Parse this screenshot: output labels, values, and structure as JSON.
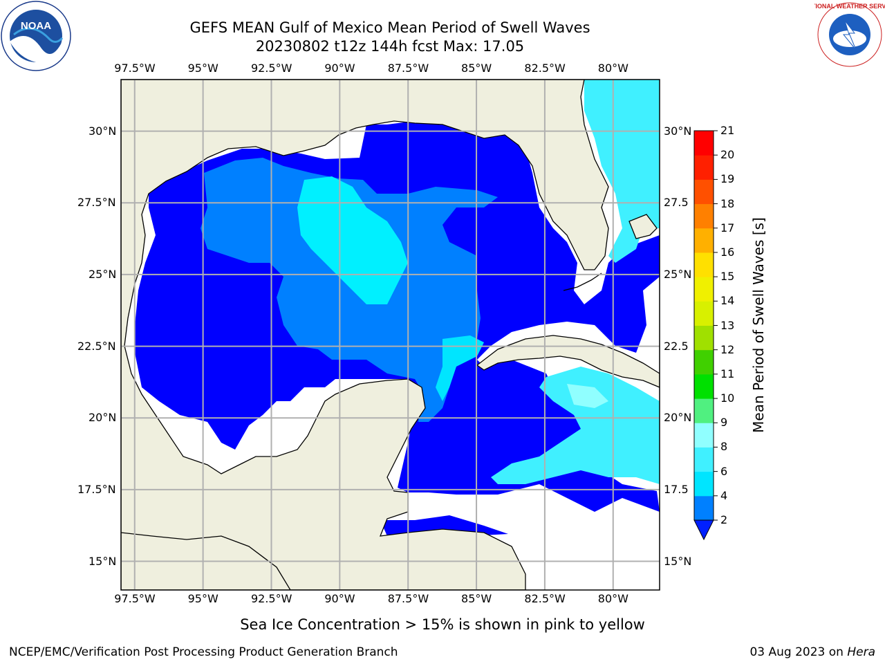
{
  "header": {
    "title_line1": "GEFS MEAN Gulf of Mexico Mean Period of Swell Waves",
    "title_line2": "20230802 t12z 144h fcst   Max: 17.05"
  },
  "axes": {
    "lon_labels": [
      "97.5°W",
      "95°W",
      "92.5°W",
      "90°W",
      "87.5°W",
      "85°W",
      "82.5°W",
      "80°W"
    ],
    "lon_values": [
      -97.5,
      -95,
      -92.5,
      -90,
      -87.5,
      -85,
      -82.5,
      -80
    ],
    "lat_labels": [
      "30°N",
      "27.5°N",
      "25°N",
      "22.5°N",
      "20°N",
      "17.5°N",
      "15°N"
    ],
    "lat_values": [
      30,
      27.5,
      25,
      22.5,
      20,
      17.5,
      15
    ],
    "right_lat_labels": [
      "30°N",
      "27.5",
      "25°N",
      "22.5",
      "20°N",
      "17.5",
      "15°N"
    ],
    "lon_range": [
      -98,
      -78.3
    ],
    "lat_range": [
      14,
      31.8
    ]
  },
  "colorbar": {
    "title": "Mean Period of Swell Waves [s]",
    "ticks": [
      "2",
      "4",
      "6",
      "8",
      "9",
      "10",
      "11",
      "12",
      "13",
      "14",
      "15",
      "16",
      "17",
      "18",
      "19",
      "20",
      "21"
    ],
    "colors": [
      "#0020ff",
      "#0080ff",
      "#00e5ff",
      "#40f0ff",
      "#90ffff",
      "#50f080",
      "#00e000",
      "#40d000",
      "#a0e000",
      "#d8f000",
      "#f0f000",
      "#ffe000",
      "#ffb000",
      "#ff8000",
      "#ff5000",
      "#ff2000",
      "#ff0000"
    ]
  },
  "logos": {
    "left": "NOAA",
    "right": "NATIONAL WEATHER SERVICE"
  },
  "note": "Sea Ice Concentration > 15% is shown in pink to yellow",
  "footer": {
    "left": "NCEP/EMC/Verification Post Processing Product Generation Branch",
    "right_date": "03 Aug 2023 on ",
    "right_machine": "Hera"
  }
}
